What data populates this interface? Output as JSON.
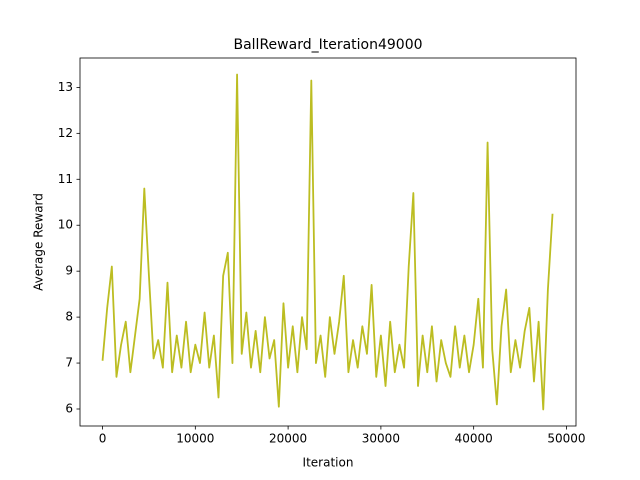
{
  "chart_data": {
    "type": "line",
    "title": "BallReward_Iteration49000",
    "x_label": "Iteration",
    "y_label": "Average Reward",
    "x": [
      0,
      500,
      1000,
      1500,
      2000,
      2500,
      3000,
      3500,
      4000,
      4500,
      5000,
      5500,
      6000,
      6500,
      7000,
      7500,
      8000,
      8500,
      9000,
      9500,
      10000,
      10500,
      11000,
      11500,
      12000,
      12500,
      13000,
      13500,
      14000,
      14500,
      15000,
      15500,
      16000,
      16500,
      17000,
      17500,
      18000,
      18500,
      19000,
      19500,
      20000,
      20500,
      21000,
      21500,
      22000,
      22500,
      23000,
      23500,
      24000,
      24500,
      25000,
      25500,
      26000,
      26500,
      27000,
      27500,
      28000,
      28500,
      29000,
      29500,
      30000,
      30500,
      31000,
      31500,
      32000,
      32500,
      33000,
      33500,
      34000,
      34500,
      35000,
      35500,
      36000,
      36500,
      37000,
      37500,
      38000,
      38500,
      39000,
      39500,
      40000,
      40500,
      41000,
      41500,
      42000,
      42500,
      43000,
      43500,
      44000,
      44500,
      45000,
      45500,
      46000,
      46500,
      47000,
      47500,
      48000,
      48500
    ],
    "series": [
      {
        "color": "#bcbd22",
        "values": [
          7.05,
          8.2,
          9.1,
          6.7,
          7.4,
          7.9,
          6.8,
          7.6,
          8.4,
          10.8,
          8.9,
          7.1,
          7.5,
          6.9,
          8.75,
          6.8,
          7.6,
          6.9,
          7.9,
          6.8,
          7.4,
          7.0,
          8.1,
          6.9,
          7.6,
          6.25,
          8.9,
          9.4,
          7.0,
          13.28,
          7.2,
          8.1,
          6.9,
          7.7,
          6.8,
          8.0,
          7.1,
          7.5,
          6.05,
          8.3,
          6.9,
          7.8,
          6.8,
          8.0,
          7.3,
          13.15,
          7.0,
          7.6,
          6.7,
          8.0,
          7.2,
          7.9,
          8.9,
          6.8,
          7.5,
          6.9,
          7.8,
          7.2,
          8.7,
          6.7,
          7.6,
          6.5,
          7.9,
          6.8,
          7.4,
          6.9,
          9.1,
          10.7,
          6.5,
          7.6,
          6.8,
          7.8,
          6.6,
          7.5,
          7.0,
          6.7,
          7.8,
          6.9,
          7.6,
          6.8,
          7.4,
          8.4,
          6.9,
          11.8,
          7.3,
          6.1,
          7.8,
          8.6,
          6.8,
          7.5,
          6.9,
          7.7,
          8.2,
          6.6,
          7.9,
          5.99,
          8.6,
          10.25
        ]
      }
    ],
    "xlim": [
      -2430,
      51030
    ],
    "ylim": [
      5.63,
      13.64
    ],
    "xticks": [
      0,
      10000,
      20000,
      30000,
      40000,
      50000
    ],
    "yticks": [
      6,
      7,
      8,
      9,
      10,
      11,
      12,
      13
    ]
  }
}
